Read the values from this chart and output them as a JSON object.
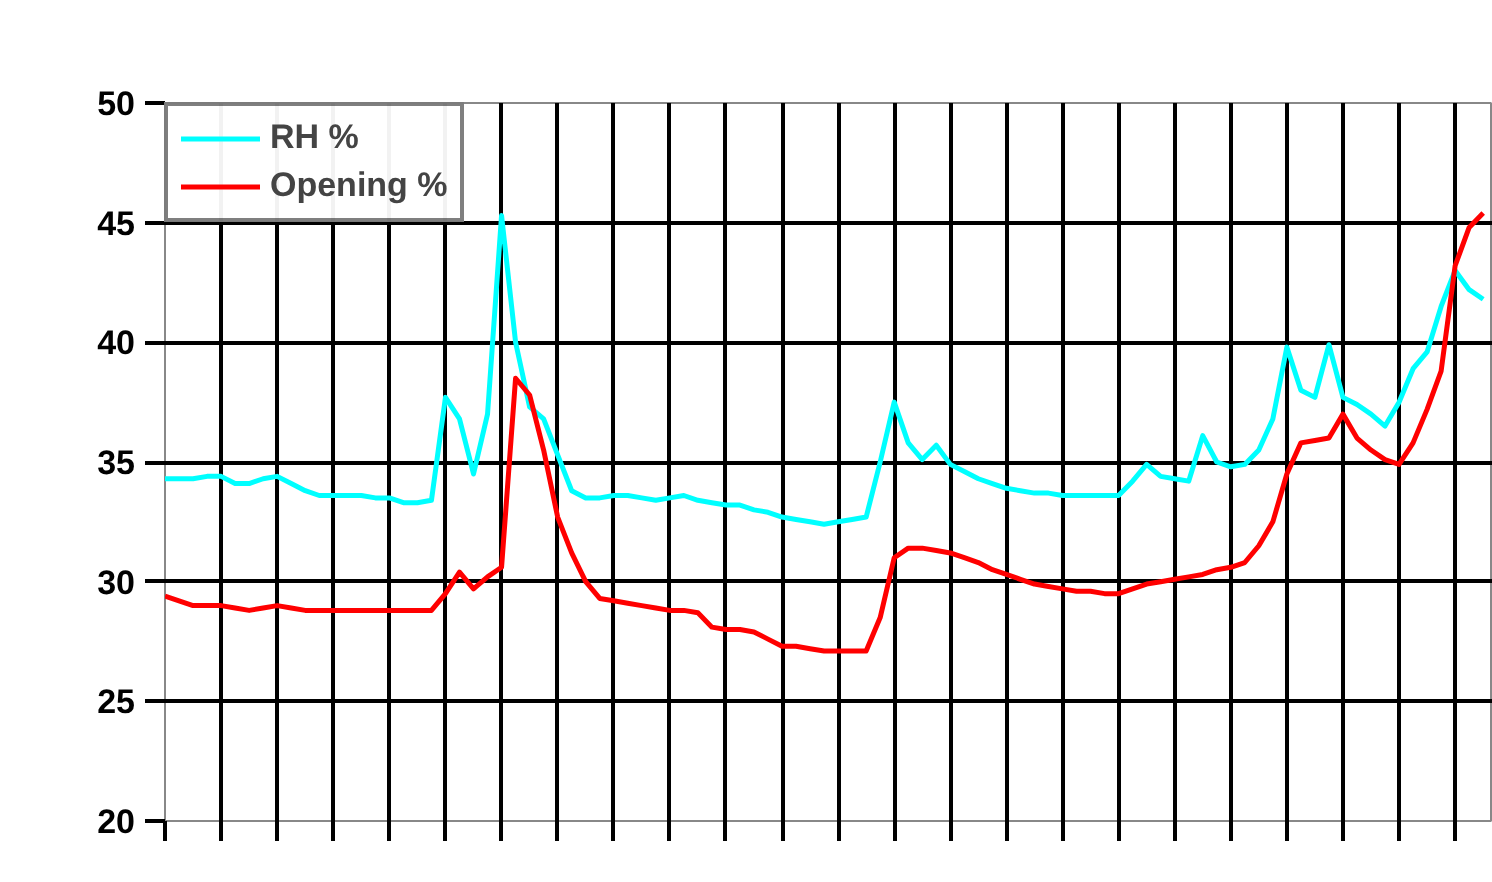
{
  "chart_data": {
    "type": "line",
    "ylim": [
      20,
      50
    ],
    "yticks": [
      20,
      25,
      30,
      35,
      40,
      45,
      50
    ],
    "categories": [
      null,
      null,
      null,
      null,
      null,
      null,
      null,
      null,
      null,
      null,
      null,
      null,
      null,
      null,
      null,
      null,
      null,
      null,
      null,
      null,
      null,
      null,
      null,
      null,
      null,
      null,
      null,
      null,
      null,
      null,
      null,
      null,
      null,
      null,
      null,
      null,
      null,
      null,
      null,
      null,
      null,
      null,
      null,
      null,
      null,
      null,
      null,
      null,
      null,
      null,
      null,
      null,
      null,
      null,
      null,
      null,
      null,
      null,
      null,
      null,
      null,
      null,
      null,
      null,
      null,
      null,
      null,
      null,
      null,
      null,
      null,
      null,
      null,
      null,
      null,
      null,
      null,
      null,
      null,
      null,
      null,
      null,
      null,
      null,
      null,
      null,
      null,
      null,
      null,
      null,
      null,
      null,
      null,
      null,
      null
    ],
    "grid": true,
    "legend": "top left",
    "marker": "none",
    "line_style": "solid",
    "series": [
      {
        "name": "RH %",
        "color": "#00ffff",
        "values": [
          34.3,
          34.3,
          34.3,
          34.4,
          34.4,
          34.1,
          34.1,
          34.3,
          34.4,
          34.1,
          33.8,
          33.6,
          33.6,
          33.6,
          33.6,
          33.5,
          33.5,
          33.3,
          33.3,
          33.4,
          37.7,
          36.8,
          34.5,
          37.0,
          45.3,
          40.0,
          37.3,
          36.8,
          35.3,
          33.8,
          33.5,
          33.5,
          33.6,
          33.6,
          33.5,
          33.4,
          33.5,
          33.6,
          33.4,
          33.3,
          33.2,
          33.2,
          33.0,
          32.9,
          32.7,
          32.6,
          32.5,
          32.4,
          32.5,
          32.6,
          32.7,
          35.0,
          37.5,
          35.8,
          35.1,
          35.7,
          34.9,
          34.6,
          34.3,
          34.1,
          33.9,
          33.8,
          33.7,
          33.7,
          33.6,
          33.6,
          33.6,
          33.6,
          33.6,
          34.2,
          34.9,
          34.4,
          34.3,
          34.2,
          36.1,
          35.0,
          34.8,
          34.9,
          35.5,
          36.8,
          39.8,
          38.0,
          37.7,
          39.9,
          37.7,
          37.4,
          37.0,
          36.5,
          37.5,
          38.9,
          39.6,
          41.5,
          43.0,
          42.2,
          41.8
        ]
      },
      {
        "name": "Opening %",
        "color": "#ff0000",
        "values": [
          29.4,
          29.2,
          29.0,
          29.0,
          29.0,
          28.9,
          28.8,
          28.9,
          29.0,
          28.9,
          28.8,
          28.8,
          28.8,
          28.8,
          28.8,
          28.8,
          28.8,
          28.8,
          28.8,
          28.8,
          29.5,
          30.4,
          29.7,
          30.2,
          30.6,
          38.5,
          37.8,
          35.5,
          32.7,
          31.2,
          30.0,
          29.3,
          29.2,
          29.1,
          29.0,
          28.9,
          28.8,
          28.8,
          28.7,
          28.1,
          28.0,
          28.0,
          27.9,
          27.6,
          27.3,
          27.3,
          27.2,
          27.1,
          27.1,
          27.1,
          27.1,
          28.5,
          31.0,
          31.4,
          31.4,
          31.3,
          31.2,
          31.0,
          30.8,
          30.5,
          30.3,
          30.1,
          29.9,
          29.8,
          29.7,
          29.6,
          29.6,
          29.5,
          29.5,
          29.7,
          29.9,
          30.0,
          30.1,
          30.2,
          30.3,
          30.5,
          30.6,
          30.8,
          31.5,
          32.5,
          34.5,
          35.8,
          35.9,
          36.0,
          37.0,
          36.0,
          35.5,
          35.1,
          34.9,
          35.8,
          37.2,
          38.8,
          43.2,
          44.8,
          45.4
        ]
      }
    ]
  }
}
